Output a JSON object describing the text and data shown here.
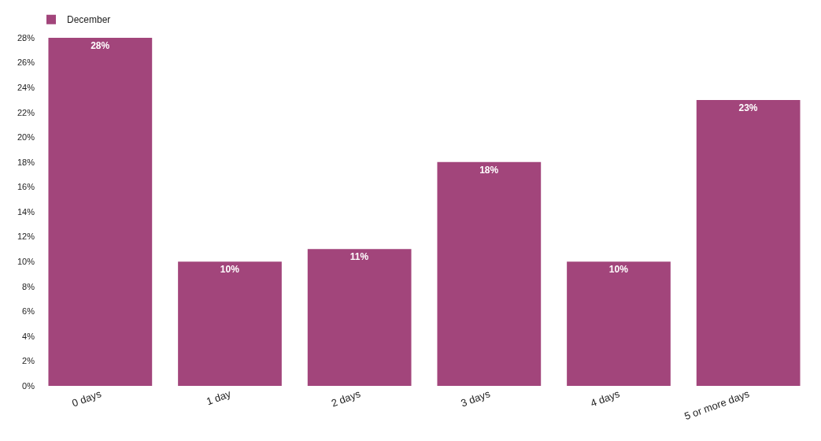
{
  "chart_data": {
    "type": "bar",
    "categories": [
      "0 days",
      "1 day",
      "2 days",
      "3 days",
      "4 days",
      "5 or more days"
    ],
    "series": [
      {
        "name": "December",
        "color": "#a2457b",
        "values": [
          28,
          10,
          11,
          18,
          10,
          23
        ],
        "value_labels": [
          "28%",
          "10%",
          "11%",
          "18%",
          "10%",
          "23%"
        ]
      }
    ],
    "ylim": [
      0,
      28
    ],
    "yticks": [
      {
        "value": 0,
        "label": "0%"
      },
      {
        "value": 2,
        "label": "2%"
      },
      {
        "value": 4,
        "label": "4%"
      },
      {
        "value": 6,
        "label": "6%"
      },
      {
        "value": 8,
        "label": "8%"
      },
      {
        "value": 10,
        "label": "10%"
      },
      {
        "value": 12,
        "label": "12%"
      },
      {
        "value": 14,
        "label": "14%"
      },
      {
        "value": 16,
        "label": "16%"
      },
      {
        "value": 18,
        "label": "18%"
      },
      {
        "value": 20,
        "label": "20%"
      },
      {
        "value": 22,
        "label": "22%"
      },
      {
        "value": 24,
        "label": "24%"
      },
      {
        "value": 26,
        "label": "26%"
      },
      {
        "value": 28,
        "label": "28%"
      }
    ],
    "grid": false,
    "legend": "top left"
  }
}
